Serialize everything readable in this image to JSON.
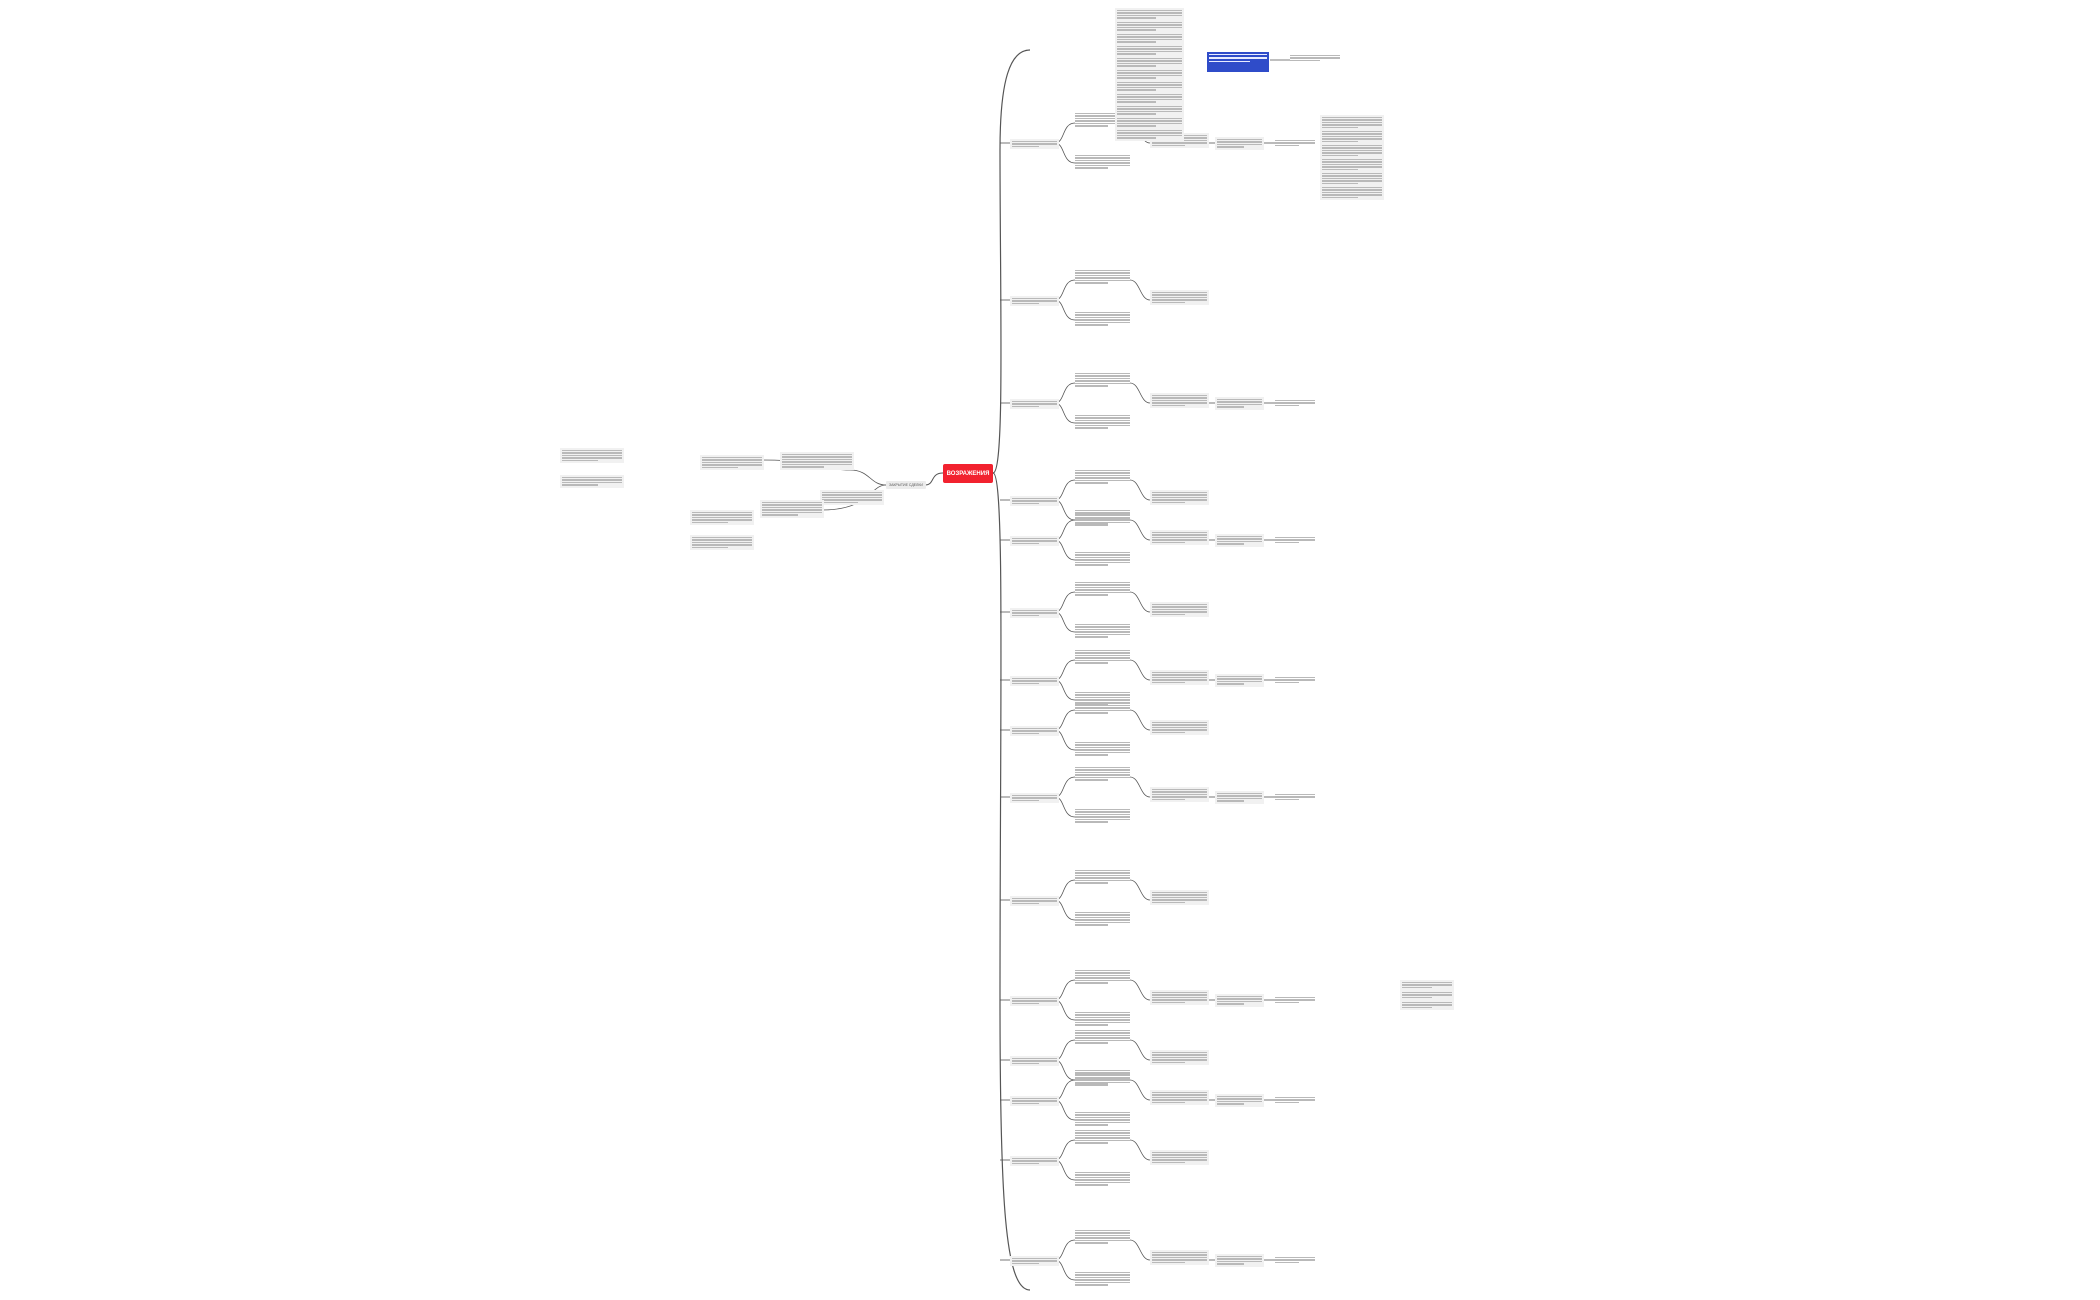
{
  "mindmap": {
    "root": {
      "label": "ВОЗРАЖЕНИЯ",
      "color": "#f2222f"
    },
    "left_branch": {
      "label": "ЗАКРЫТИЕ СДЕЛКИ"
    },
    "highlight_color": "#2f4cc9",
    "line_color": "#555555"
  }
}
